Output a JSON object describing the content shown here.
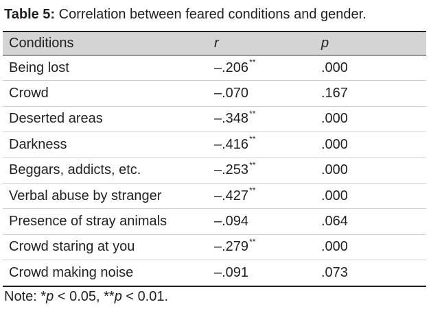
{
  "caption": {
    "label": "Table 5:",
    "text": " Correlation between feared conditions and gender."
  },
  "table": {
    "headers": {
      "conditions": "Conditions",
      "r": "r",
      "p": "p"
    },
    "rows": [
      {
        "condition": "Being lost",
        "r": "–.206",
        "sig": "**",
        "p": ".000"
      },
      {
        "condition": "Crowd",
        "r": "–.070",
        "sig": "",
        "p": ".167"
      },
      {
        "condition": "Deserted areas",
        "r": "–.348",
        "sig": "**",
        "p": ".000"
      },
      {
        "condition": "Darkness",
        "r": "–.416",
        "sig": "**",
        "p": ".000"
      },
      {
        "condition": "Beggars, addicts, etc.",
        "r": "–.253",
        "sig": "**",
        "p": ".000"
      },
      {
        "condition": "Verbal abuse by stranger",
        "r": "–.427",
        "sig": "**",
        "p": ".000"
      },
      {
        "condition": "Presence of stray animals",
        "r": "–.094",
        "sig": "",
        "p": ".064"
      },
      {
        "condition": "Crowd staring at you",
        "r": "–.279",
        "sig": "**",
        "p": ".000"
      },
      {
        "condition": "Crowd making noise",
        "r": "–.091",
        "sig": "",
        "p": ".073"
      }
    ]
  },
  "note": {
    "prefix": "Note: *",
    "p1": "p",
    "mid": " < 0.05, **",
    "p2": "p",
    "suffix": " < 0.01."
  }
}
